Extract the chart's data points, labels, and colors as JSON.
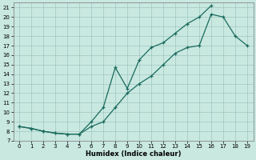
{
  "xlabel": "Humidex (Indice chaleur)",
  "xlim": [
    -0.5,
    19.5
  ],
  "ylim": [
    7,
    21.5
  ],
  "xticks": [
    0,
    1,
    2,
    3,
    4,
    5,
    6,
    7,
    8,
    9,
    10,
    11,
    12,
    13,
    14,
    15,
    16,
    17,
    18,
    19
  ],
  "yticks": [
    7,
    8,
    9,
    10,
    11,
    12,
    13,
    14,
    15,
    16,
    17,
    18,
    19,
    20,
    21
  ],
  "bg_color": "#c8e8e0",
  "line_color": "#1a6b5e",
  "upper_x": [
    0,
    1,
    2,
    3,
    4,
    5,
    6,
    7,
    8,
    9,
    10,
    11,
    12,
    13,
    14,
    15,
    16
  ],
  "upper_y": [
    8.5,
    8.3,
    8.0,
    7.8,
    7.7,
    7.7,
    9.0,
    10.5,
    14.7,
    12.5,
    15.5,
    16.8,
    17.3,
    18.3,
    19.3,
    20.0,
    21.2
  ],
  "lower_x": [
    0,
    1,
    2,
    3,
    4,
    5,
    6,
    7,
    8,
    9,
    10,
    11,
    12,
    13,
    14,
    15,
    16,
    17,
    18,
    19
  ],
  "lower_y": [
    8.5,
    8.3,
    8.0,
    7.8,
    7.7,
    7.7,
    8.5,
    9.0,
    10.5,
    12.0,
    13.0,
    13.8,
    15.0,
    16.2,
    16.8,
    17.0,
    20.3,
    20.0,
    18.0,
    17.0
  ]
}
